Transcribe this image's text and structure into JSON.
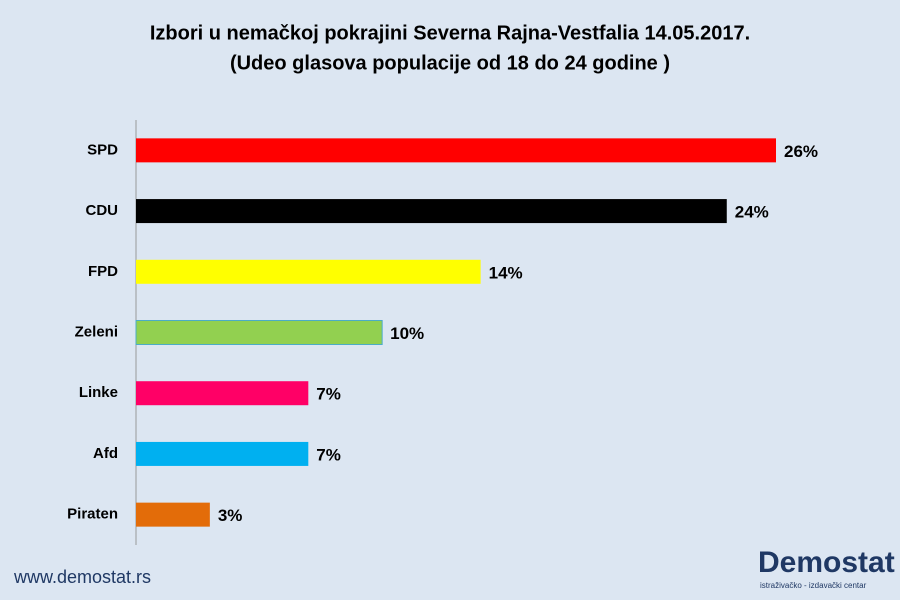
{
  "chart_data": {
    "type": "bar",
    "orientation": "horizontal",
    "title": "Izbori u nemačkoj pokrajini  Severna Rajna-Vestfalia  14.05.2017.",
    "subtitle": "(Udeo glasova populacije od 18 do 24 godine )",
    "categories": [
      "SPD",
      "CDU",
      "FPD",
      "Zeleni",
      "Linke",
      "Afd",
      "Piraten"
    ],
    "values": [
      26,
      24,
      14,
      10,
      7,
      7,
      3
    ],
    "value_labels": [
      "26%",
      "24%",
      "14%",
      "10%",
      "7%",
      "7%",
      "3%"
    ],
    "colors": [
      "#ff0000",
      "#000000",
      "#ffff00",
      "#92d050",
      "#ff0066",
      "#00b0f0",
      "#e36c09"
    ]
  },
  "footer": {
    "website": "www.demostat.rs",
    "logo": "Demostat",
    "logo_tagline": "istraživačko - izdavački centar"
  }
}
